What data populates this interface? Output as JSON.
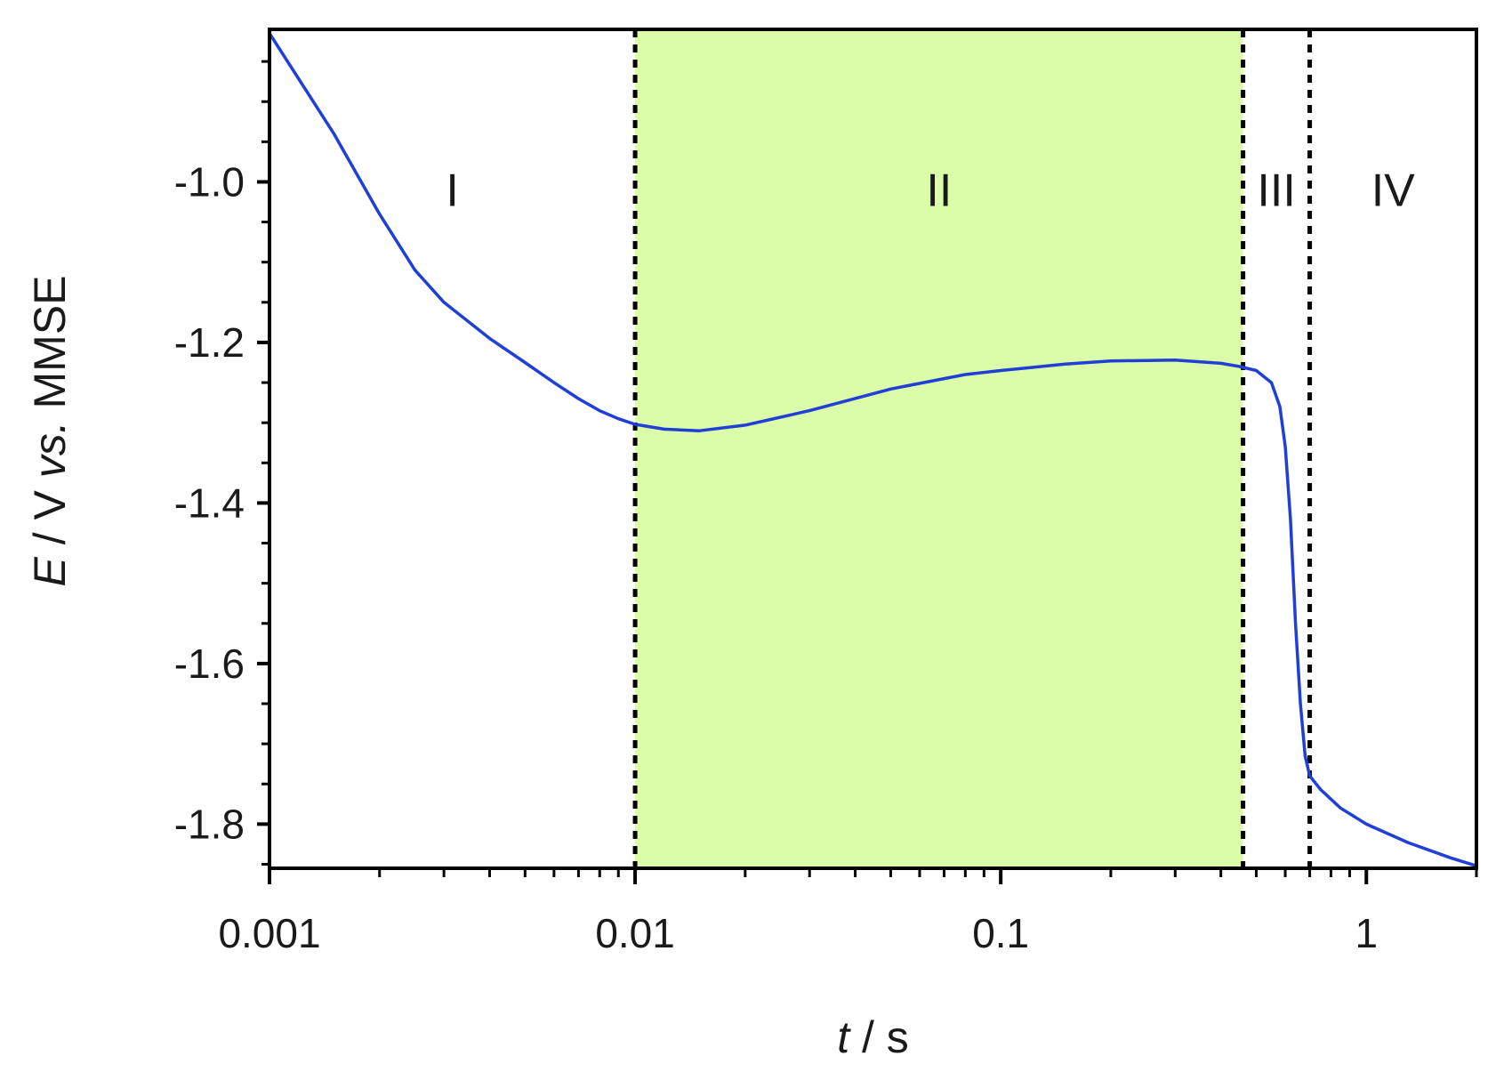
{
  "chart_data": {
    "type": "line",
    "title": "",
    "xlabel": "t / s",
    "xlabel_parts": [
      {
        "text": "t",
        "style": "italic"
      },
      {
        "text": " / s",
        "style": "normal"
      }
    ],
    "ylabel": "E / V vs. MMSE",
    "ylabel_parts": [
      {
        "text": "E",
        "style": "italic"
      },
      {
        "text": " / V ",
        "style": "normal"
      },
      {
        "text": "vs.",
        "style": "italic"
      },
      {
        "text": " MMSE",
        "style": "normal"
      }
    ],
    "x_scale": "log",
    "xlim": [
      0.001,
      2
    ],
    "ylim": [
      -1.855,
      -0.81
    ],
    "x_ticks": [
      {
        "value": 0.001,
        "label": "0.001"
      },
      {
        "value": 0.01,
        "label": "0.01"
      },
      {
        "value": 0.1,
        "label": "0.1"
      },
      {
        "value": 1,
        "label": "1"
      }
    ],
    "y_ticks": [
      {
        "value": -1.0,
        "label": "-1.0"
      },
      {
        "value": -1.2,
        "label": "-1.2"
      },
      {
        "value": -1.4,
        "label": "-1.4"
      },
      {
        "value": -1.6,
        "label": "-1.6"
      },
      {
        "value": -1.8,
        "label": "-1.8"
      }
    ],
    "grid": false,
    "legend": "none",
    "series": [
      {
        "color": "#1f3fd6",
        "x": [
          0.001,
          0.0015,
          0.002,
          0.0025,
          0.003,
          0.004,
          0.005,
          0.006,
          0.007,
          0.008,
          0.009,
          0.01,
          0.012,
          0.015,
          0.02,
          0.03,
          0.05,
          0.08,
          0.1,
          0.15,
          0.2,
          0.3,
          0.4,
          0.45,
          0.5,
          0.55,
          0.58,
          0.6,
          0.62,
          0.64,
          0.66,
          0.68,
          0.7,
          0.75,
          0.85,
          1.0,
          1.3,
          1.7,
          2.0
        ],
        "y": [
          -0.815,
          -0.94,
          -1.04,
          -1.11,
          -1.15,
          -1.195,
          -1.225,
          -1.25,
          -1.27,
          -1.285,
          -1.295,
          -1.302,
          -1.308,
          -1.31,
          -1.303,
          -1.285,
          -1.258,
          -1.24,
          -1.235,
          -1.227,
          -1.223,
          -1.222,
          -1.226,
          -1.23,
          -1.235,
          -1.25,
          -1.28,
          -1.33,
          -1.42,
          -1.55,
          -1.65,
          -1.715,
          -1.74,
          -1.757,
          -1.78,
          -1.8,
          -1.823,
          -1.842,
          -1.852
        ]
      }
    ],
    "regions": [
      {
        "label": "I",
        "x0": 0.001,
        "x1": 0.01,
        "fill": null
      },
      {
        "label": "II",
        "x0": 0.01,
        "x1": 0.46,
        "fill": "#dbfca8"
      },
      {
        "label": "III",
        "x0": 0.46,
        "x1": 0.7,
        "fill": null
      },
      {
        "label": "IV",
        "x0": 0.7,
        "x1": 2.0,
        "fill": null
      }
    ],
    "region_label_y": -1.01,
    "boundaries": [
      0.01,
      0.46,
      0.7
    ]
  }
}
